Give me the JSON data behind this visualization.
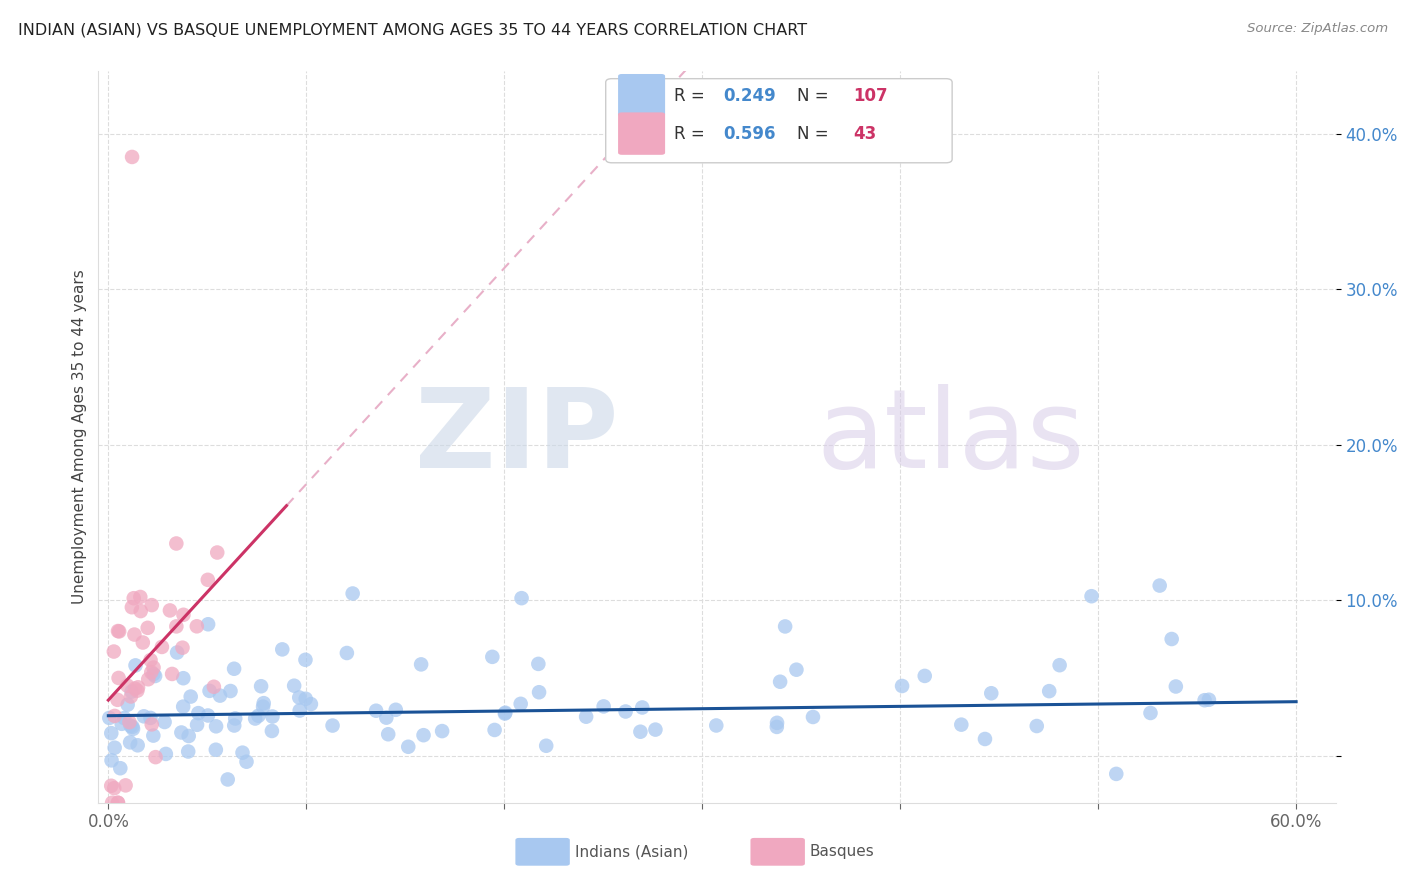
{
  "title": "INDIAN (ASIAN) VS BASQUE UNEMPLOYMENT AMONG AGES 35 TO 44 YEARS CORRELATION CHART",
  "source": "Source: ZipAtlas.com",
  "ylabel": "Unemployment Among Ages 35 to 44 years",
  "xlim": [
    -0.005,
    0.62
  ],
  "ylim": [
    -0.03,
    0.44
  ],
  "xticks": [
    0.0,
    0.1,
    0.2,
    0.3,
    0.4,
    0.5,
    0.6
  ],
  "yticks": [
    0.0,
    0.1,
    0.2,
    0.3,
    0.4
  ],
  "xtick_labels": [
    "0.0%",
    "",
    "",
    "",
    "",
    "",
    "60.0%"
  ],
  "ytick_labels": [
    "",
    "10.0%",
    "20.0%",
    "30.0%",
    "40.0%"
  ],
  "legend_r_indian": "0.249",
  "legend_n_indian": "107",
  "legend_r_basque": "0.596",
  "legend_n_basque": "43",
  "indian_color": "#a8c8f0",
  "basque_color": "#f0a8c0",
  "indian_line_color": "#1a5296",
  "basque_line_color": "#cc3366",
  "basque_dashed_color": "#e8b0c8",
  "watermark_zip": "ZIP",
  "watermark_atlas": "atlas",
  "background_color": "#ffffff",
  "grid_color": "#dddddd",
  "title_color": "#222222",
  "source_color": "#888888",
  "ylabel_color": "#444444",
  "ytick_color": "#4488cc",
  "xtick_color": "#666666",
  "legend_text_color": "#333333",
  "legend_r_color": "#4488cc",
  "legend_n_color": "#cc3366"
}
